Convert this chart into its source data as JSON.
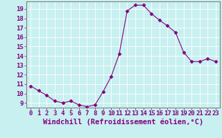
{
  "x": [
    0,
    1,
    2,
    3,
    4,
    5,
    6,
    7,
    8,
    9,
    10,
    11,
    12,
    13,
    14,
    15,
    16,
    17,
    18,
    19,
    20,
    21,
    22,
    23
  ],
  "y": [
    10.8,
    10.3,
    9.8,
    9.2,
    9.0,
    9.2,
    8.8,
    8.6,
    8.8,
    10.2,
    11.8,
    14.2,
    18.8,
    19.4,
    19.4,
    18.5,
    17.8,
    17.2,
    16.5,
    14.4,
    13.4,
    13.4,
    13.7,
    13.4
  ],
  "xlabel": "Windchill (Refroidissement éolien,°C)",
  "ylim": [
    8.5,
    19.8
  ],
  "yticks": [
    9,
    10,
    11,
    12,
    13,
    14,
    15,
    16,
    17,
    18,
    19
  ],
  "xticks": [
    0,
    1,
    2,
    3,
    4,
    5,
    6,
    7,
    8,
    9,
    10,
    11,
    12,
    13,
    14,
    15,
    16,
    17,
    18,
    19,
    20,
    21,
    22,
    23
  ],
  "line_color": "#800080",
  "marker": "D",
  "marker_size": 2.5,
  "bg_color": "#c8f0f0",
  "grid_color": "#ffffff",
  "tick_label_color": "#800080",
  "xlabel_color": "#800080",
  "xlabel_fontsize": 7.5,
  "tick_fontsize": 6.5,
  "spine_color": "#808080"
}
